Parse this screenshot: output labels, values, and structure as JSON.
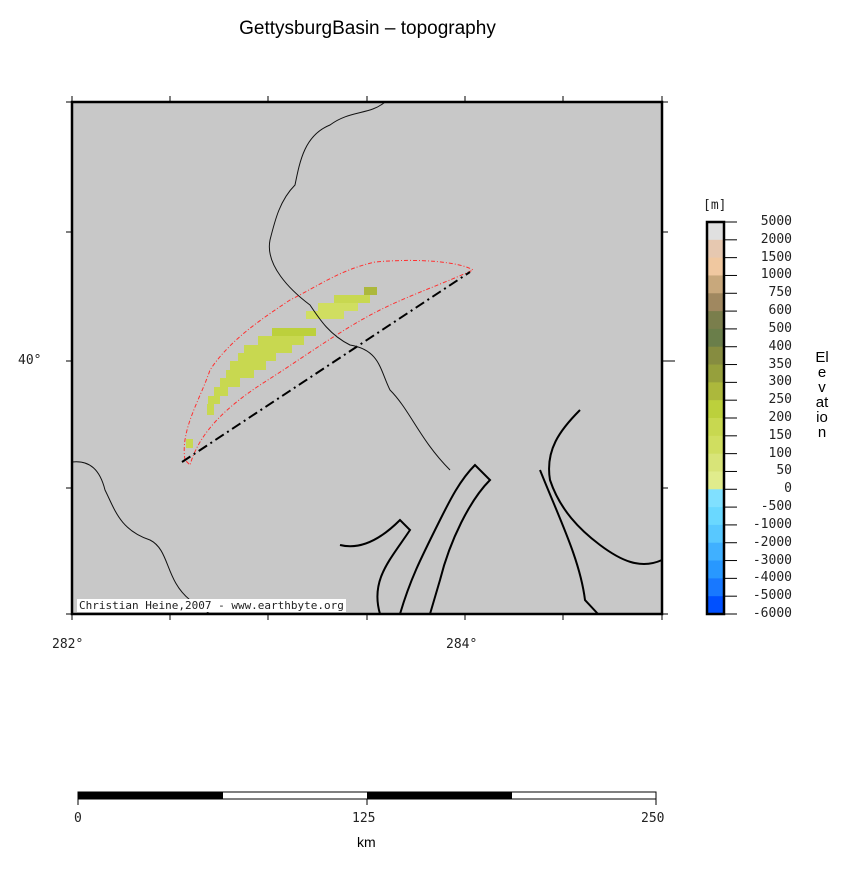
{
  "title": "GettysburgBasin – topography",
  "map": {
    "x_ticks": [
      "282°",
      "284°"
    ],
    "y_ticks": [
      "40°"
    ],
    "credit": "Christian Heine,2007 - www.earthbyte.org",
    "background_color": "#c8c8c8",
    "basin_outline_color": "#ff3030"
  },
  "colorbar": {
    "unit": "[m]",
    "label": "Elevation",
    "ticks": [
      "5000",
      "2000",
      "1500",
      "1000",
      "750",
      "600",
      "500",
      "400",
      "350",
      "300",
      "250",
      "200",
      "150",
      "100",
      "50",
      "0",
      "-500",
      "-1000",
      "-2000",
      "-3000",
      "-4000",
      "-5000",
      "-6000"
    ],
    "colors": [
      "#e0e0e0",
      "#e6c8b0",
      "#f0c8a0",
      "#c8a87c",
      "#a08860",
      "#7a7e4c",
      "#6a7e4a",
      "#868c40",
      "#96a03c",
      "#acb83c",
      "#bcd03c",
      "#c8d850",
      "#d0de60",
      "#d8e478",
      "#e0ec8c",
      "#80e0ff",
      "#6ad8ff",
      "#58c8ff",
      "#40b0ff",
      "#2898ff",
      "#1878ff",
      "#0050ff"
    ]
  },
  "scalebar": {
    "ticks": [
      "0",
      "125",
      "250"
    ],
    "unit": "km"
  }
}
